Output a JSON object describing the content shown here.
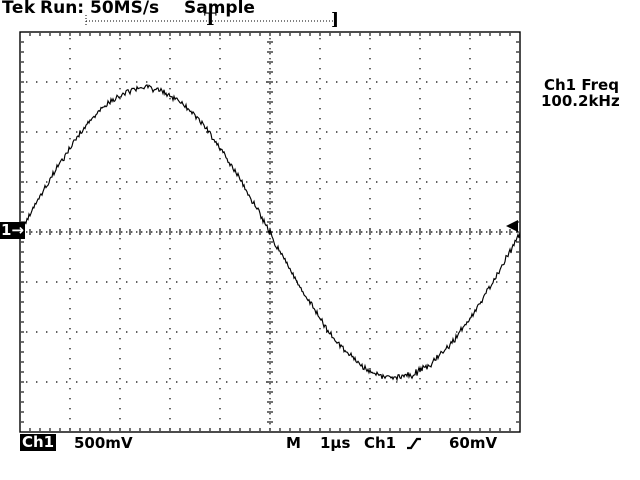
{
  "colors": {
    "foreground": "#000000",
    "background": "#ffffff"
  },
  "header": {
    "logo": "Tek",
    "status": "Run: 50MS/s",
    "acquisition_mode": "Sample"
  },
  "record_bar": {
    "trigger_marker": "T",
    "end_bracket": "]"
  },
  "channel_position_badge": "1→",
  "measurement": {
    "title": "Ch1 Freq",
    "value": "100.2kHz"
  },
  "readouts": {
    "channel_badge": "Ch1",
    "vertical_scale": "500mV",
    "timebase_prefix": "M",
    "timebase": "1µs",
    "trigger_source": "Ch1",
    "trigger_level": "60mV"
  },
  "icons": {
    "trigger_slope": "rising-edge",
    "channel_position": "arrow-right"
  },
  "graticule": {
    "columns": 10,
    "rows": 8,
    "minor_ticks_per_division": 5
  },
  "chart_data": {
    "type": "line",
    "title": "Channel 1 trace",
    "signal": "sine",
    "volts_per_division": 0.5,
    "seconds_per_division": 1e-06,
    "frequency_hz": 100200,
    "amplitude_divisions": 2.9,
    "period_divisions": 10,
    "vertical_center_offset_divisions": 0.02,
    "phase_at_left_edge_deg": 0,
    "noise_divisions": 0.05,
    "trigger_level_divisions": 0.12
  }
}
